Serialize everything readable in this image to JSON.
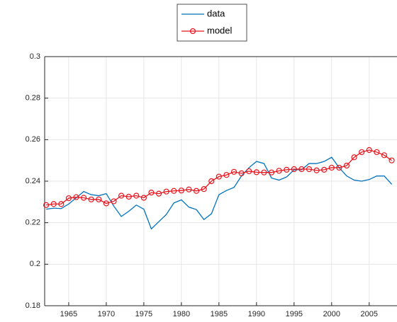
{
  "chart_data": {
    "type": "line",
    "x": [
      1962,
      1963,
      1964,
      1965,
      1966,
      1967,
      1968,
      1969,
      1970,
      1971,
      1972,
      1973,
      1974,
      1975,
      1976,
      1977,
      1978,
      1979,
      1980,
      1981,
      1982,
      1983,
      1984,
      1985,
      1986,
      1987,
      1988,
      1989,
      1990,
      1991,
      1992,
      1993,
      1994,
      1995,
      1996,
      1997,
      1998,
      1999,
      2000,
      2001,
      2002,
      2003,
      2004,
      2005,
      2006,
      2007,
      2008
    ],
    "series": [
      {
        "name": "data",
        "color": "#0072bd",
        "marker": "none",
        "values": [
          0.2265,
          0.227,
          0.2268,
          0.229,
          0.232,
          0.235,
          0.2335,
          0.233,
          0.234,
          0.228,
          0.223,
          0.2255,
          0.2285,
          0.2265,
          0.217,
          0.2205,
          0.224,
          0.2295,
          0.231,
          0.2275,
          0.2263,
          0.2215,
          0.2243,
          0.2335,
          0.2355,
          0.237,
          0.2425,
          0.2465,
          0.2495,
          0.2485,
          0.2415,
          0.2405,
          0.242,
          0.2455,
          0.2455,
          0.2485,
          0.2485,
          0.2495,
          0.2515,
          0.2465,
          0.2425,
          0.2405,
          0.24,
          0.2408,
          0.2425,
          0.2425,
          0.2385
        ]
      },
      {
        "name": "model",
        "color": "#e8141e",
        "marker": "circle",
        "values": [
          0.2285,
          0.229,
          0.229,
          0.2318,
          0.2323,
          0.232,
          0.2312,
          0.2312,
          0.2293,
          0.2303,
          0.233,
          0.2325,
          0.233,
          0.232,
          0.2345,
          0.234,
          0.235,
          0.2353,
          0.2355,
          0.236,
          0.2353,
          0.2362,
          0.24,
          0.2422,
          0.243,
          0.2445,
          0.2438,
          0.2448,
          0.2443,
          0.2442,
          0.2442,
          0.245,
          0.2455,
          0.2458,
          0.2458,
          0.2458,
          0.2452,
          0.2455,
          0.2465,
          0.2465,
          0.2475,
          0.2515,
          0.254,
          0.255,
          0.254,
          0.2525,
          0.25
        ]
      }
    ],
    "xlim": [
      1961.8,
      2008.7
    ],
    "xticks": [
      1965,
      1970,
      1975,
      1980,
      1985,
      1990,
      1995,
      2000,
      2005
    ],
    "ylim": [
      0.18,
      0.3
    ],
    "yticks": [
      0.18,
      0.2,
      0.22,
      0.24,
      0.26,
      0.28,
      0.3
    ],
    "grid": true,
    "legend": "top"
  }
}
